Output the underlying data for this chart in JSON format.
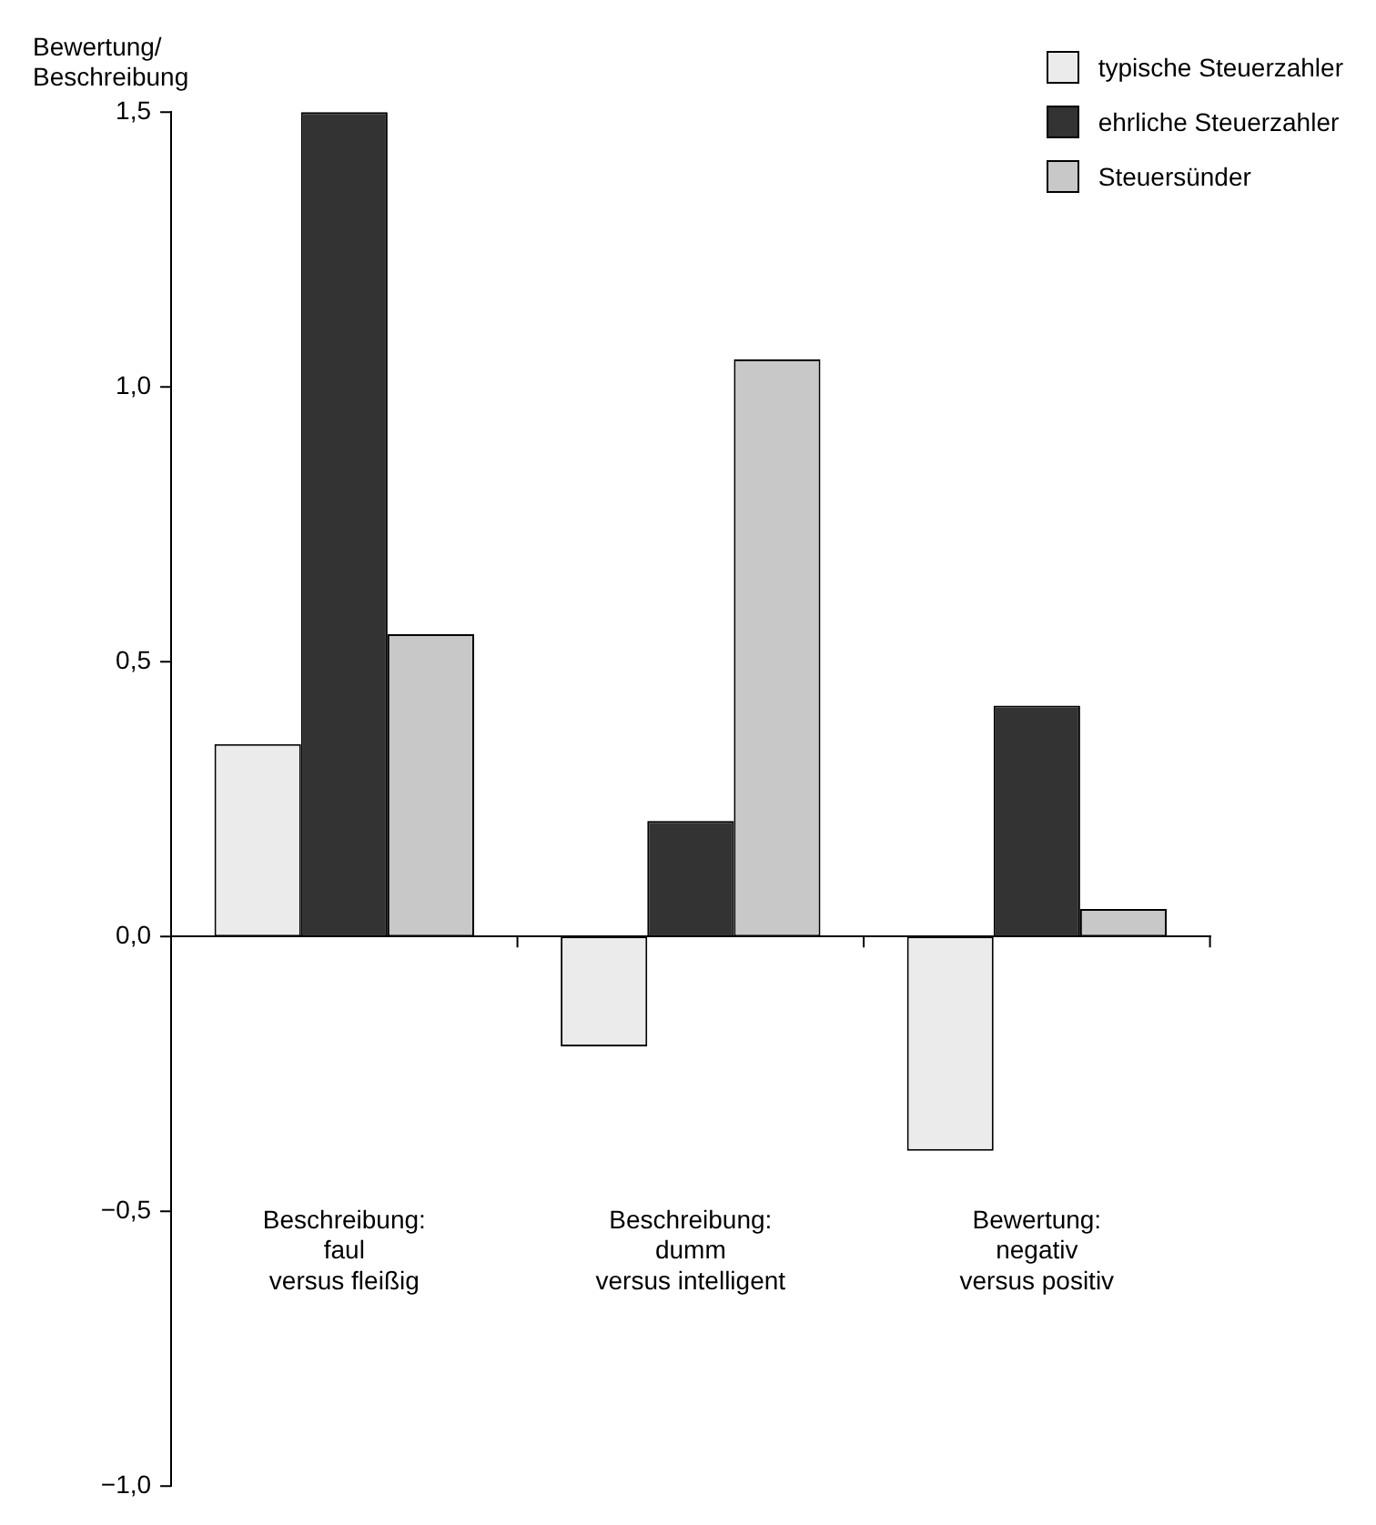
{
  "chart_data": {
    "type": "bar",
    "ylabel": "Bewertung/\nBeschreibung",
    "categories": [
      "Beschreibung:\nfaul\nversus fleißig",
      "Beschreibung:\ndumm\nversus intelligent",
      "Bewertung:\nnegativ\nversus positiv"
    ],
    "series": [
      {
        "name": "typische Steuerzahler",
        "color": "#ebebeb",
        "values": [
          0.35,
          -0.2,
          -0.39
        ]
      },
      {
        "name": "ehrliche Steuerzahler",
        "color": "#333333",
        "values": [
          1.5,
          0.21,
          0.42
        ]
      },
      {
        "name": "Steuersünder",
        "color": "#c8c8c8",
        "values": [
          0.55,
          1.05,
          0.05
        ]
      }
    ],
    "ylim": [
      -1.0,
      1.5
    ],
    "yticks": [
      {
        "value": -1.0,
        "label": "−1,0"
      },
      {
        "value": -0.5,
        "label": "−0,5"
      },
      {
        "value": 0,
        "label": "0,0"
      },
      {
        "value": 0.5,
        "label": "0,5"
      },
      {
        "value": 1.0,
        "label": "1,0"
      },
      {
        "value": 1.5,
        "label": "1,5"
      }
    ],
    "legend": "top right"
  }
}
